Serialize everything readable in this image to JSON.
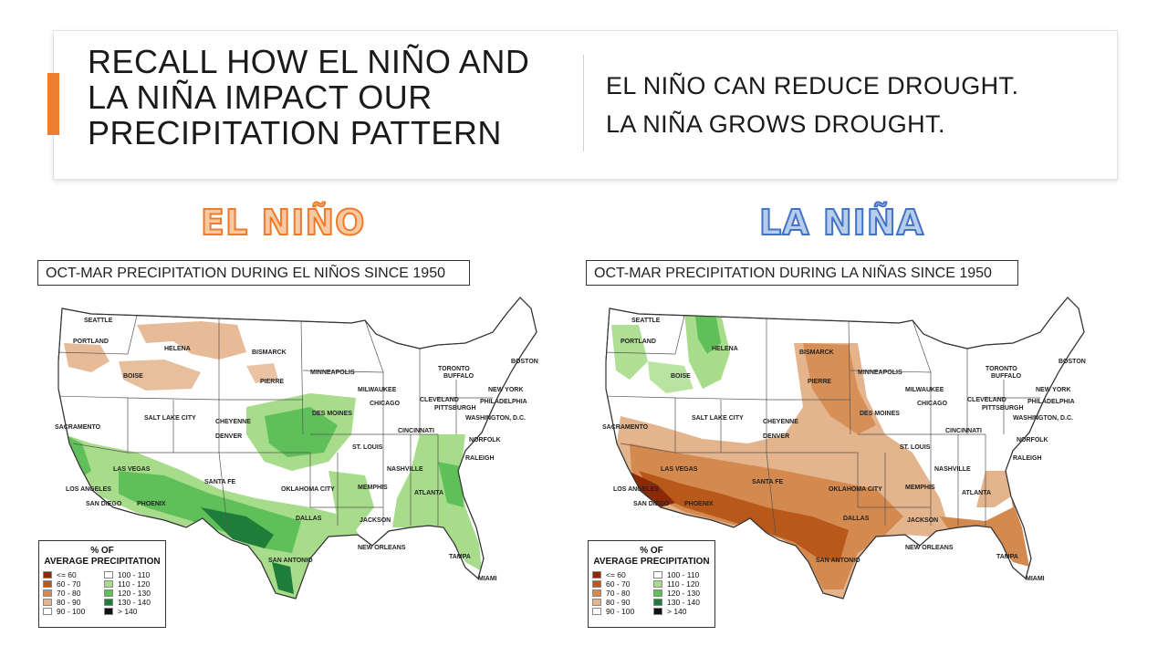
{
  "header": {
    "title_lines": [
      "RECALL HOW EL NIÑO AND",
      "LA NIÑA IMPACT OUR",
      "PRECIPITATION PATTERN"
    ],
    "bullets": [
      "EL NIÑO CAN REDUCE DROUGHT.",
      "LA NIÑA GROWS DROUGHT."
    ]
  },
  "colors": {
    "accent": "#ed7d31",
    "el_nino_heading": "#ef7a2a",
    "la_nina_heading": "#4472c4"
  },
  "panels": {
    "el_nino": {
      "heading": "EL NIÑO",
      "caption": "OCT-MAR PRECIPITATION DURING EL NIÑOS SINCE 1950"
    },
    "la_nina": {
      "heading": "LA NIÑA",
      "caption": "OCT-MAR PRECIPITATION DURING LA NIÑAS SINCE 1950"
    }
  },
  "legend": {
    "title_line1": "% OF",
    "title_line2": "AVERAGE PRECIPITATION",
    "items": [
      {
        "label": "<= 60",
        "color": "#8b2a08"
      },
      {
        "label": "100 - 110",
        "color": "#ffffff"
      },
      {
        "label": "60 - 70",
        "color": "#b8581b"
      },
      {
        "label": "110 - 120",
        "color": "#a6dc8a"
      },
      {
        "label": "70 - 80",
        "color": "#d4894e"
      },
      {
        "label": "120 - 130",
        "color": "#5fc05a"
      },
      {
        "label": "80 - 90",
        "color": "#e4b48c"
      },
      {
        "label": "130 - 140",
        "color": "#1f7d3a"
      },
      {
        "label": "90 - 100",
        "color": "#ffffff"
      },
      {
        "label": "> 140",
        "color": "#111111"
      }
    ]
  },
  "cities": {
    "seattle": "SEATTLE",
    "portland": "PORTLAND",
    "helena": "HELENA",
    "bismarck": "BISMARCK",
    "boise": "BOISE",
    "pierre": "PIERRE",
    "minneapolis": "MINNEAPOLIS",
    "milwaukee": "MILWAUKEE",
    "toronto": "TORONTO",
    "buffalo": "BUFFALO",
    "boston": "BOSTON",
    "new_york": "NEW YORK",
    "chicago": "CHICAGO",
    "cleveland": "CLEVELAND",
    "pittsburgh": "PITTSBURGH",
    "philadelphia": "PHILADELPHIA",
    "washington": "WASHINGTON, D.C.",
    "sacramento": "SACRAMENTO",
    "salt_lake_city": "SALT LAKE CITY",
    "cheyenne": "CHEYENNE",
    "des_moines": "DES MOINES",
    "denver": "DENVER",
    "cincinnati": "CINCINNATI",
    "norfolk": "NORFOLK",
    "st_louis": "ST. LOUIS",
    "raleigh": "RALEIGH",
    "las_vegas": "LAS VEGAS",
    "santa_fe": "SANTA FE",
    "nashville": "NASHVILLE",
    "los_angeles": "LOS ANGELES",
    "oklahoma_city": "OKLAHOMA CITY",
    "memphis": "MEMPHIS",
    "atlanta": "ATLANTA",
    "san_diego": "SAN DIEGO",
    "phoenix": "PHOENIX",
    "dallas": "DALLAS",
    "jackson": "JACKSON",
    "new_orleans": "NEW ORLEANS",
    "san_antonio": "SAN ANTONIO",
    "tampa": "TAMPA",
    "miami": "MIAMI"
  }
}
